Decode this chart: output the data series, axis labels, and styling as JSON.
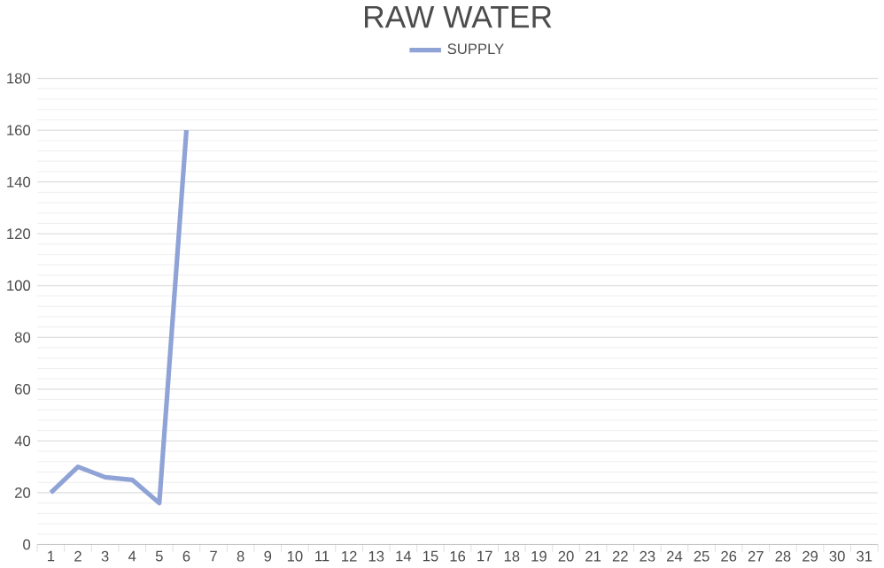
{
  "chart_data": {
    "type": "line",
    "title": "RAW WATER",
    "categories": [
      "1",
      "2",
      "3",
      "4",
      "5",
      "6",
      "7",
      "8",
      "9",
      "10",
      "11",
      "12",
      "13",
      "14",
      "15",
      "16",
      "17",
      "18",
      "19",
      "20",
      "21",
      "22",
      "23",
      "24",
      "25",
      "26",
      "27",
      "28",
      "29",
      "30",
      "31"
    ],
    "series": [
      {
        "name": "SUPPLY",
        "color": "#8fa3d6",
        "values": [
          20,
          30,
          26,
          25,
          16,
          160,
          null,
          null,
          null,
          null,
          null,
          null,
          null,
          null,
          null,
          null,
          null,
          null,
          null,
          null,
          null,
          null,
          null,
          null,
          null,
          null,
          null,
          null,
          null,
          null,
          null
        ]
      }
    ],
    "ylim": [
      0,
      180
    ],
    "yticks": [
      0,
      20,
      40,
      60,
      80,
      100,
      120,
      140,
      160,
      180
    ],
    "grid": "y",
    "legend": "top",
    "marker": "none",
    "line_style": "solid"
  }
}
